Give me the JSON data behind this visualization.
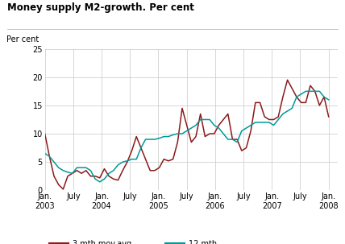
{
  "title": "Money supply M2-growth. Per cent",
  "ylabel": "Per cent",
  "ylim": [
    0,
    25
  ],
  "yticks": [
    0,
    5,
    10,
    15,
    20,
    25
  ],
  "bg_color": "#ffffff",
  "grid_color": "#c8c8c8",
  "series_3mth": {
    "label": "3 mth.mov.avg.",
    "color": "#8b1a1a",
    "values": [
      10.0,
      6.0,
      2.5,
      1.0,
      0.2,
      2.5,
      3.0,
      3.5,
      3.0,
      3.5,
      2.5,
      2.5,
      2.2,
      3.8,
      2.5,
      2.0,
      1.8,
      3.5,
      5.0,
      7.0,
      9.5,
      7.5,
      5.5,
      3.5,
      3.5,
      4.0,
      5.5,
      5.2,
      5.5,
      8.5,
      14.5,
      11.5,
      8.5,
      9.5,
      13.5,
      9.5,
      10.0,
      10.0,
      11.5,
      12.5,
      13.5,
      9.0,
      9.0,
      7.0,
      7.5,
      10.5,
      15.5,
      15.5,
      13.0,
      12.5,
      12.5,
      13.0,
      16.5,
      19.5,
      18.0,
      16.5,
      15.5,
      15.5,
      18.5,
      17.5,
      15.0,
      16.5,
      13.0
    ]
  },
  "series_12mth": {
    "label": "12 mth.",
    "color": "#00999a",
    "values": [
      6.5,
      6.0,
      5.0,
      4.0,
      3.5,
      3.2,
      3.0,
      4.0,
      4.0,
      4.0,
      3.5,
      2.0,
      1.5,
      2.0,
      3.0,
      3.5,
      4.5,
      5.0,
      5.2,
      5.5,
      5.5,
      7.5,
      9.0,
      9.0,
      9.0,
      9.2,
      9.5,
      9.5,
      9.8,
      10.0,
      10.0,
      10.5,
      11.0,
      11.5,
      12.5,
      12.5,
      12.5,
      11.5,
      11.0,
      10.0,
      9.0,
      9.0,
      8.5,
      10.5,
      11.0,
      11.5,
      12.0,
      12.0,
      12.0,
      12.0,
      11.5,
      12.5,
      13.5,
      14.0,
      14.5,
      16.5,
      17.0,
      17.5,
      17.5,
      17.5,
      17.5,
      16.5,
      16.0
    ]
  },
  "x_tick_labels": [
    "Jan.\n2003",
    "July",
    "Jan.\n2004",
    "July",
    "Jan.\n2005",
    "July",
    "Jan.\n2006",
    "July",
    "Jan.\n2007",
    "July",
    "Jan.\n2008"
  ],
  "x_tick_positions": [
    0,
    6,
    12,
    18,
    24,
    30,
    36,
    42,
    48,
    54,
    60
  ]
}
